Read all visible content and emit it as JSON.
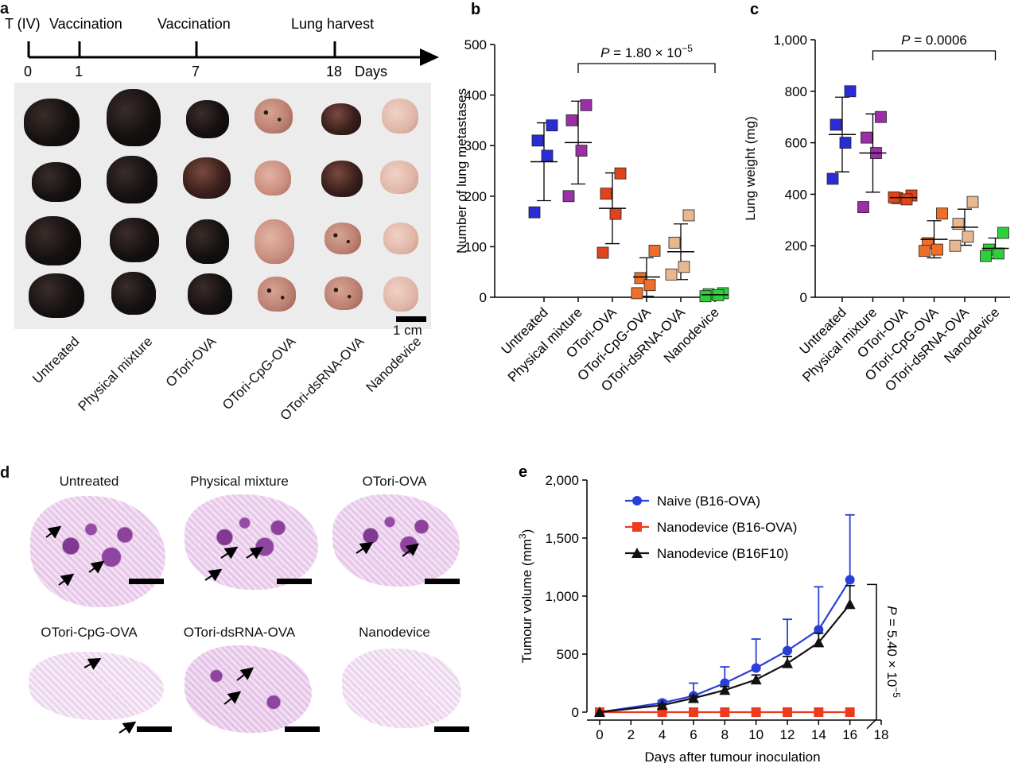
{
  "panel_a": {
    "label": "a",
    "timeline": {
      "labels_top": [
        "T (IV)",
        "Vaccination",
        "Vaccination",
        "Lung harvest"
      ],
      "ticks": [
        "0",
        "1",
        "7",
        "18"
      ],
      "unit": "Days"
    },
    "scale_label": "1 cm",
    "groups": [
      "Untreated",
      "Physical mixture",
      "OTori-OVA",
      "OTori-CpG-OVA",
      "OTori-dsRNA-OVA",
      "Nanodevice"
    ]
  },
  "panel_d": {
    "label": "d",
    "titles": [
      "Untreated",
      "Physical mixture",
      "OTori-OVA",
      "OTori-CpG-OVA",
      "OTori-dsRNA-OVA",
      "Nanodevice"
    ]
  },
  "chart_data": [
    {
      "panel": "b",
      "type": "scatter",
      "ylabel": "Number of lung metastases",
      "ylim": [
        0,
        500
      ],
      "yticks": [
        0,
        100,
        200,
        300,
        400,
        500
      ],
      "categories": [
        "Untreated",
        "Physical mixture",
        "OTori-OVA",
        "OTori-CpG-OVA",
        "OTori-dsRNA-OVA",
        "Nanodevice"
      ],
      "colors": [
        "#2a2dd6",
        "#9b2fa6",
        "#e0441c",
        "#ef6e2a",
        "#e9b78e",
        "#2fcf3a"
      ],
      "points": [
        [
          340,
          310,
          280,
          168
        ],
        [
          380,
          350,
          290,
          200
        ],
        [
          245,
          205,
          165,
          88
        ],
        [
          92,
          38,
          24,
          8
        ],
        [
          162,
          108,
          60,
          45
        ],
        [
          8,
          6,
          4,
          2
        ]
      ],
      "mean": [
        268,
        306,
        176,
        40,
        90,
        5
      ],
      "sd": [
        77,
        82,
        70,
        38,
        55,
        3
      ],
      "annotation": {
        "p_prefix": "P",
        "p_text": " = 1.80 × 10",
        "p_exp": "−5",
        "from": 1,
        "to": 5
      }
    },
    {
      "panel": "c",
      "type": "scatter",
      "ylabel": "Lung weight (mg)",
      "ylim": [
        0,
        1000
      ],
      "ytick_labels": [
        "0",
        "200",
        "400",
        "600",
        "800",
        "1,000"
      ],
      "yticks": [
        0,
        200,
        400,
        600,
        800,
        1000
      ],
      "categories": [
        "Untreated",
        "Physical mixture",
        "OTori-OVA",
        "OTori-CpG-OVA",
        "OTori-dsRNA-OVA",
        "Nanodevice"
      ],
      "colors": [
        "#2a2dd6",
        "#9b2fa6",
        "#e0441c",
        "#ef6e2a",
        "#e9b78e",
        "#2fcf3a"
      ],
      "points": [
        [
          800,
          670,
          600,
          460
        ],
        [
          700,
          620,
          560,
          350
        ],
        [
          395,
          385,
          380,
          388
        ],
        [
          325,
          210,
          185,
          180
        ],
        [
          370,
          285,
          235,
          200
        ],
        [
          250,
          185,
          170,
          160
        ]
      ],
      "mean": [
        632,
        560,
        387,
        225,
        272,
        190
      ],
      "sd": [
        145,
        152,
        12,
        72,
        70,
        40
      ],
      "annotation": {
        "p_prefix": "P",
        "p_text": " = 0.0006",
        "from": 1,
        "to": 5
      }
    },
    {
      "panel": "e",
      "type": "line",
      "xlabel": "Days after tumour inoculation",
      "ylabel": "Tumour volume (mm",
      "ylabel_sup": "3",
      "ylabel_end": ")",
      "xlim": [
        0,
        18
      ],
      "xticks": [
        0,
        2,
        4,
        6,
        8,
        10,
        12,
        14,
        16,
        18
      ],
      "ylim": [
        0,
        2000
      ],
      "ytick_labels": [
        "0",
        "500",
        "1,000",
        "1,500",
        "2,000"
      ],
      "yticks": [
        0,
        500,
        1000,
        1500,
        2000
      ],
      "x": [
        0,
        4,
        6,
        8,
        10,
        12,
        14,
        16
      ],
      "series": [
        {
          "name": "Naive (B16-OVA)",
          "color": "#2a3fd8",
          "marker": "circle",
          "values": [
            0,
            80,
            140,
            250,
            380,
            530,
            710,
            1140
          ],
          "err": [
            0,
            20,
            110,
            140,
            250,
            270,
            370,
            560
          ]
        },
        {
          "name": "Nanodevice (B16-OVA)",
          "color": "#ef3a1f",
          "marker": "square",
          "values": [
            0,
            0,
            0,
            0,
            0,
            0,
            0,
            0
          ],
          "err": [
            0,
            0,
            0,
            0,
            0,
            0,
            0,
            0
          ]
        },
        {
          "name": "Nanodevice (B16F10)",
          "color": "#111111",
          "marker": "triangle",
          "values": [
            0,
            60,
            120,
            190,
            280,
            420,
            600,
            930
          ],
          "err": [
            0,
            10,
            20,
            30,
            40,
            60,
            80,
            160
          ]
        }
      ],
      "annotation": {
        "p_prefix": "P",
        "p_text": " = 5.40 × 10",
        "p_exp": "−5"
      }
    }
  ]
}
